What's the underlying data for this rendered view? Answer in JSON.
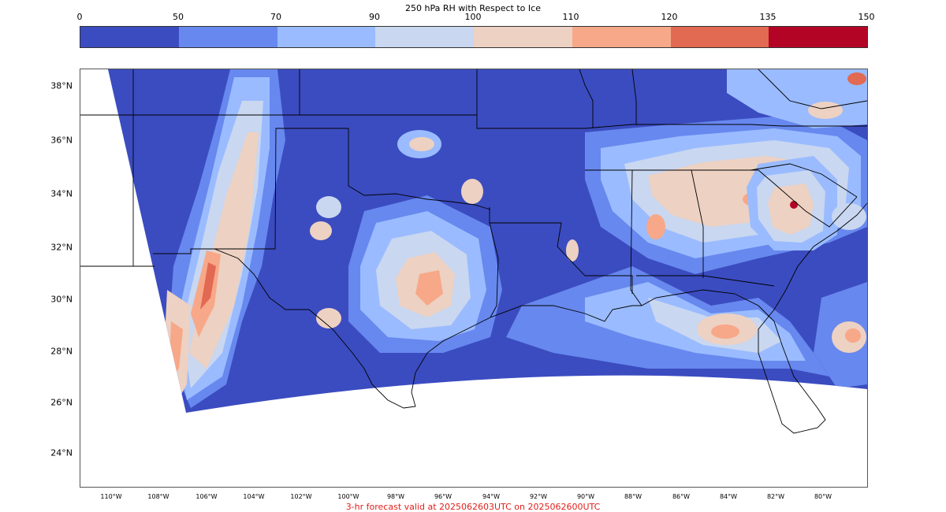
{
  "colorbar": {
    "title": "250 hPa RH with Respect to Ice",
    "ticks": [
      "0",
      "50",
      "70",
      "90",
      "100",
      "110",
      "120",
      "135",
      "150"
    ],
    "colors": [
      "#3b4cc0",
      "#6788ee",
      "#9abbff",
      "#c9d7f0",
      "#edd1c2",
      "#f7a889",
      "#e26952",
      "#b40426"
    ]
  },
  "map": {
    "lat_labels": [
      "38°N",
      "36°N",
      "34°N",
      "32°N",
      "30°N",
      "28°N",
      "26°N",
      "24°N"
    ],
    "lon_labels": [
      "110°W",
      "108°W",
      "106°W",
      "104°W",
      "102°W",
      "100°W",
      "98°W",
      "96°W",
      "94°W",
      "92°W",
      "90°W",
      "88°W",
      "86°W",
      "84°W",
      "82°W",
      "80°W"
    ],
    "domain_color": "#3b4cc0"
  },
  "footer": "3-hr forecast valid at 2025062603UTC on 2025062600UTC"
}
